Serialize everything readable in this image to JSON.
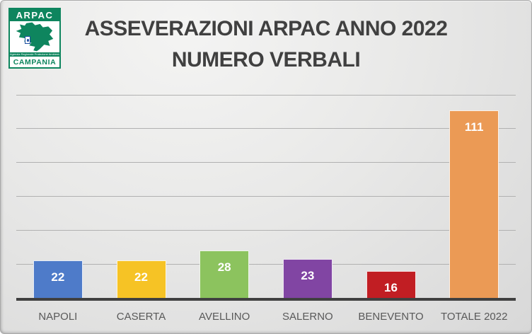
{
  "slide": {
    "title_line1": "ASSEVERAZIONI ARPAC ANNO 2022",
    "title_line2": "NUMERO VERBALI"
  },
  "logo": {
    "name": "ARPAC",
    "tagline": "Agenzia Regionale Protezione Ambientale",
    "region": "CAMPANIA",
    "green": "#0e855e"
  },
  "theme": {
    "title_color": "#404040",
    "axis_color": "#404040",
    "gridline_color": "#b1b1b1",
    "category_label_color": "#595959",
    "background_gray": "#e0e0e0"
  },
  "chart_data": {
    "type": "bar",
    "title": "ASSEVERAZIONI ARPAC ANNO 2022 NUMERO VERBALI",
    "categories": [
      "NAPOLI",
      "CASERTA",
      "AVELLINO",
      "SALERNO",
      "BENEVENTO",
      "TOTALE 2022"
    ],
    "values": [
      22,
      22,
      28,
      23,
      16,
      111
    ],
    "bar_colors": [
      "#4e7bc9",
      "#f6c325",
      "#8cc35e",
      "#8145a3",
      "#c11e23",
      "#eb9a55"
    ],
    "value_label_color": "#ffffff",
    "xlabel": "",
    "ylabel": "",
    "ylim": [
      0,
      120
    ],
    "grid_step": 20,
    "grid": true,
    "legend": false
  }
}
